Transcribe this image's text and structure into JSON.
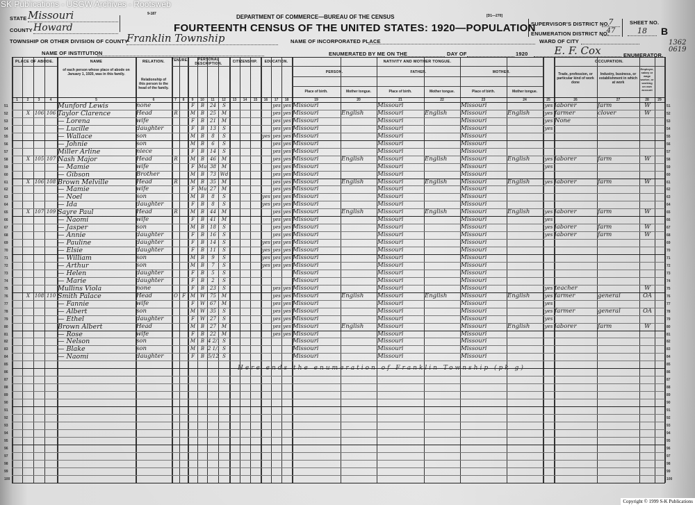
{
  "watermark": "SK Publications - USGW Archives - Rootsweb",
  "copyright": "Copyright © 1999 S-K Publications",
  "form": {
    "form_number": "9-187",
    "department": "DEPARTMENT OF COMMERCE—BUREAU OF THE CENSUS",
    "title": "FOURTEENTH CENSUS OF THE UNITED STATES: 1920—POPULATION",
    "code": "[D1—270]",
    "state_label": "STATE",
    "state_value": "Missouri",
    "county_label": "COUNTY",
    "county_value": "Howard",
    "township_label": "TOWNSHIP OR OTHER DIVISION OF COUNTY",
    "township_value": "Franklin Township",
    "incorporated_label": "NAME OF INCORPORATED PLACE",
    "institution_label": "NAME OF INSTITUTION",
    "ward_label": "WARD OF CITY",
    "enumerated_label": "ENUMERATED BY ME ON THE",
    "day_label": "DAY OF",
    "year": "1920",
    "enumerator_value": "E. F. Cox",
    "enumerator_label": "ENUMERATOR.",
    "supervisor_label": "SUPERVISOR'S DISTRICT NO.",
    "supervisor_value": "7",
    "enumeration_label": "ENUMERATION DISTRICT NO.",
    "enumeration_value": "47",
    "sheet_label": "SHEET NO.",
    "sheet_value": "18",
    "sheet_side": "B",
    "margin_note": "1362 0619"
  },
  "groups": {
    "abode": "PLACE OF ABODE.",
    "name": "NAME",
    "name_desc": "of each person whose place of abode on January 1, 1920, was in this family.",
    "relation": "RELATION.",
    "relation_desc": "Relationship of this person to the head of the family.",
    "tenure": "TENURE.",
    "personal": "PERSONAL DESCRIPTION.",
    "citizenship": "CITIZENSHIP.",
    "education": "EDUCATION.",
    "nativity": "NATIVITY AND MOTHER TONGUE.",
    "person": "PERSON.",
    "father": "FATHER.",
    "mother": "MOTHER.",
    "place_of_birth": "Place of birth.",
    "mother_tongue": "Mother tongue.",
    "occupation": "OCCUPATION.",
    "trade": "Trade, profession, or particular kind of work done",
    "industry": "Industry, business, or establishment in which at work",
    "employer": "Employer, salary or wage worker, or working on own account"
  },
  "column_numbers": [
    "1",
    "2",
    "3",
    "4",
    "5",
    "6",
    "7",
    "8",
    "9",
    "10",
    "11",
    "12",
    "13",
    "14",
    "15",
    "16",
    "17",
    "18",
    "19",
    "20",
    "21",
    "22",
    "23",
    "24",
    "25",
    "26",
    "27",
    "28",
    "29"
  ],
  "rows": [
    {
      "line": "51",
      "name": "Munford Lewis",
      "relation": "none",
      "sex": "F",
      "race": "B",
      "age": "24",
      "marital": "S",
      "read": "yes",
      "write": "yes",
      "birth": "Missouri",
      "f_birth": "Missouri",
      "m_birth": "Missouri",
      "english": "yes",
      "occupation": "laborer",
      "industry": "farm",
      "employer": "W"
    },
    {
      "line": "52",
      "abode": "X",
      "dwelling": "106",
      "family": "106",
      "name": "Taylor Clarence",
      "relation": "Head",
      "home": "R",
      "sex": "M",
      "race": "B",
      "age": "25",
      "marital": "M",
      "read": "yes",
      "write": "yes",
      "birth": "Missouri",
      "tongue": "English",
      "f_birth": "Missouri",
      "f_tongue": "English",
      "m_birth": "Missouri",
      "m_tongue": "English",
      "english": "yes",
      "occupation": "farmer",
      "industry": "clover",
      "employer": "W"
    },
    {
      "line": "53",
      "name": "— Lorena",
      "relation": "wife",
      "sex": "F",
      "race": "B",
      "age": "21",
      "marital": "M",
      "read": "yes",
      "write": "yes",
      "birth": "Missouri",
      "f_birth": "Missouri",
      "m_birth": "Missouri",
      "english": "yes",
      "occupation": "None"
    },
    {
      "line": "54",
      "name": "— Lucille",
      "relation": "daughter",
      "sex": "F",
      "race": "B",
      "age": "13",
      "marital": "S",
      "read": "yes",
      "write": "yes",
      "birth": "Missouri",
      "f_birth": "Missouri",
      "m_birth": "Missouri",
      "english": "yes"
    },
    {
      "line": "55",
      "name": "— Wallace",
      "relation": "son",
      "sex": "M",
      "race": "B",
      "age": "8",
      "marital": "S",
      "school": "yes",
      "read": "yes",
      "write": "yes",
      "birth": "Missouri",
      "f_birth": "Missouri",
      "m_birth": "Missouri"
    },
    {
      "line": "56",
      "name": "— Johnie",
      "relation": "son",
      "sex": "M",
      "race": "B",
      "age": "6",
      "marital": "S",
      "read": "yes",
      "write": "yes",
      "birth": "Missouri",
      "f_birth": "Missouri",
      "m_birth": "Missouri"
    },
    {
      "line": "57",
      "name": "Miller Arline",
      "relation": "niece",
      "sex": "F",
      "race": "B",
      "age": "14",
      "marital": "S",
      "read": "yes",
      "write": "yes",
      "birth": "Missouri",
      "f_birth": "Missouri",
      "m_birth": "Missouri"
    },
    {
      "line": "58",
      "abode": "X",
      "dwelling": "105",
      "family": "107",
      "name": "Nash Major",
      "relation": "Head",
      "home": "R",
      "sex": "M",
      "race": "B",
      "age": "46",
      "marital": "M",
      "read": "yes",
      "write": "yes",
      "birth": "Missouri",
      "tongue": "English",
      "f_birth": "Missouri",
      "f_tongue": "English",
      "m_birth": "Missouri",
      "m_tongue": "English",
      "english": "yes",
      "occupation": "laborer",
      "industry": "farm",
      "employer": "W"
    },
    {
      "line": "59",
      "name": "— Mamie",
      "relation": "wife",
      "sex": "F",
      "race": "Mu",
      "age": "38",
      "marital": "M",
      "read": "yes",
      "write": "yes",
      "birth": "Missouri",
      "f_birth": "Missouri",
      "m_birth": "Missouri",
      "english": "yes"
    },
    {
      "line": "60",
      "name": "— Gibson",
      "relation": "Brother",
      "sex": "M",
      "race": "B",
      "age": "73",
      "marital": "Wd",
      "read": "yes",
      "write": "yes",
      "birth": "Missouri",
      "f_birth": "Missouri",
      "m_birth": "Missouri"
    },
    {
      "line": "61",
      "abode": "X",
      "dwelling": "106",
      "family": "108",
      "name": "Brown Melville",
      "relation": "Head",
      "home": "R",
      "sex": "M",
      "race": "B",
      "age": "35",
      "marital": "M",
      "read": "yes",
      "write": "yes",
      "birth": "Missouri",
      "tongue": "English",
      "f_birth": "Missouri",
      "f_tongue": "English",
      "m_birth": "Missouri",
      "m_tongue": "English",
      "english": "yes",
      "occupation": "laborer",
      "industry": "farm",
      "employer": "W"
    },
    {
      "line": "62",
      "name": "— Mamie",
      "relation": "wife",
      "sex": "F",
      "race": "Mu",
      "age": "27",
      "marital": "M",
      "read": "yes",
      "write": "yes",
      "birth": "Missouri",
      "f_birth": "Missouri",
      "m_birth": "Missouri"
    },
    {
      "line": "63",
      "name": "— Noel",
      "relation": "son",
      "sex": "M",
      "race": "B",
      "age": "8",
      "marital": "S",
      "school": "yes",
      "read": "yes",
      "write": "yes",
      "birth": "Missouri",
      "f_birth": "Missouri",
      "m_birth": "Missouri"
    },
    {
      "line": "64",
      "name": "— Ida",
      "relation": "daughter",
      "sex": "F",
      "race": "B",
      "age": "8",
      "marital": "S",
      "school": "yes",
      "read": "yes",
      "write": "yes",
      "birth": "Missouri",
      "f_birth": "Missouri",
      "m_birth": "Missouri"
    },
    {
      "line": "65",
      "abode": "X",
      "dwelling": "107",
      "family": "109",
      "name": "Sayre Paul",
      "relation": "Head",
      "home": "R",
      "sex": "M",
      "race": "B",
      "age": "44",
      "marital": "M",
      "read": "yes",
      "write": "yes",
      "birth": "Missouri",
      "tongue": "English",
      "f_birth": "Missouri",
      "f_tongue": "English",
      "m_birth": "Missouri",
      "m_tongue": "English",
      "english": "yes",
      "occupation": "laborer",
      "industry": "farm",
      "employer": "W"
    },
    {
      "line": "66",
      "name": "— Naomi",
      "relation": "wife",
      "sex": "F",
      "race": "B",
      "age": "41",
      "marital": "M",
      "read": "yes",
      "write": "yes",
      "birth": "Missouri",
      "f_birth": "Missouri",
      "m_birth": "Missouri",
      "english": "yes"
    },
    {
      "line": "67",
      "name": "— Jasper",
      "relation": "son",
      "sex": "M",
      "race": "B",
      "age": "18",
      "marital": "S",
      "read": "yes",
      "write": "yes",
      "birth": "Missouri",
      "f_birth": "Missouri",
      "m_birth": "Missouri",
      "english": "yes",
      "occupation": "laborer",
      "industry": "farm",
      "employer": "W"
    },
    {
      "line": "68",
      "name": "— Annie",
      "relation": "daughter",
      "sex": "F",
      "race": "B",
      "age": "16",
      "marital": "S",
      "read": "yes",
      "write": "yes",
      "birth": "Missouri",
      "f_birth": "Missouri",
      "m_birth": "Missouri",
      "english": "yes",
      "occupation": "laborer",
      "industry": "farm",
      "employer": "W"
    },
    {
      "line": "69",
      "name": "— Pauline",
      "relation": "daughter",
      "sex": "F",
      "race": "B",
      "age": "14",
      "marital": "S",
      "school": "yes",
      "read": "yes",
      "write": "yes",
      "birth": "Missouri",
      "f_birth": "Missouri",
      "m_birth": "Missouri"
    },
    {
      "line": "70",
      "name": "— Elsie",
      "relation": "daughter",
      "sex": "F",
      "race": "B",
      "age": "11",
      "marital": "S",
      "school": "yes",
      "read": "yes",
      "write": "yes",
      "birth": "Missouri",
      "f_birth": "Missouri",
      "m_birth": "Missouri"
    },
    {
      "line": "71",
      "name": "— William",
      "relation": "son",
      "sex": "M",
      "race": "B",
      "age": "9",
      "marital": "S",
      "school": "yes",
      "read": "yes",
      "write": "yes",
      "birth": "Missouri",
      "f_birth": "Missouri",
      "m_birth": "Missouri"
    },
    {
      "line": "72",
      "name": "— Arthur",
      "relation": "son",
      "sex": "M",
      "race": "B",
      "age": "7",
      "marital": "S",
      "school": "yes",
      "read": "yes",
      "write": "yes",
      "birth": "Missouri",
      "f_birth": "Missouri",
      "m_birth": "Missouri"
    },
    {
      "line": "73",
      "name": "— Helen",
      "relation": "daughter",
      "sex": "F",
      "race": "B",
      "age": "5",
      "marital": "S",
      "birth": "Missouri",
      "f_birth": "Missouri",
      "m_birth": "Missouri"
    },
    {
      "line": "74",
      "name": "— Marie",
      "relation": "daughter",
      "sex": "F",
      "race": "B",
      "age": "2",
      "marital": "S",
      "birth": "Missouri",
      "f_birth": "Missouri",
      "m_birth": "Missouri"
    },
    {
      "line": "75",
      "name": "Mullins Viola",
      "relation": "none",
      "sex": "F",
      "race": "B",
      "age": "23",
      "marital": "S",
      "read": "yes",
      "write": "yes",
      "birth": "Missouri",
      "f_birth": "Missouri",
      "m_birth": "Missouri",
      "english": "yes",
      "occupation": "teacher",
      "employer": "W"
    },
    {
      "line": "76",
      "abode": "X",
      "dwelling": "108",
      "family": "110",
      "name": "Smith Palace",
      "relation": "Head",
      "home": "O",
      "mortgage": "F",
      "sex": "M",
      "race": "W",
      "age": "75",
      "marital": "M",
      "read": "yes",
      "write": "yes",
      "birth": "Missouri",
      "tongue": "English",
      "f_birth": "Missouri",
      "f_tongue": "English",
      "m_birth": "Missouri",
      "m_tongue": "English",
      "english": "yes",
      "occupation": "farmer",
      "industry": "general",
      "employer": "OA"
    },
    {
      "line": "77",
      "name": "— Fannie",
      "relation": "wife",
      "sex": "F",
      "race": "W",
      "age": "67",
      "marital": "M",
      "read": "yes",
      "write": "yes",
      "birth": "Missouri",
      "f_birth": "Missouri",
      "m_birth": "Missouri",
      "english": "yes"
    },
    {
      "line": "78",
      "name": "— Albert",
      "relation": "son",
      "sex": "M",
      "race": "W",
      "age": "35",
      "marital": "S",
      "read": "yes",
      "write": "yes",
      "birth": "Missouri",
      "f_birth": "Missouri",
      "m_birth": "Missouri",
      "english": "yes",
      "occupation": "farmer",
      "industry": "general",
      "employer": "OA"
    },
    {
      "line": "79",
      "name": "— Ethel",
      "relation": "daughter",
      "sex": "F",
      "race": "W",
      "age": "27",
      "marital": "S",
      "read": "yes",
      "write": "yes",
      "birth": "Missouri",
      "f_birth": "Missouri",
      "m_birth": "Missouri",
      "english": "yes"
    },
    {
      "line": "80",
      "name": "Brown Albert",
      "relation": "Head",
      "sex": "M",
      "race": "B",
      "age": "27",
      "marital": "M",
      "read": "yes",
      "write": "yes",
      "birth": "Missouri",
      "tongue": "English",
      "f_birth": "Missouri",
      "m_birth": "Missouri",
      "m_tongue": "English",
      "english": "yes",
      "occupation": "laborer",
      "industry": "farm",
      "employer": "W"
    },
    {
      "line": "81",
      "name": "— Rose",
      "relation": "wife",
      "sex": "F",
      "race": "B",
      "age": "22",
      "marital": "M",
      "read": "yes",
      "write": "yes",
      "birth": "Missouri",
      "f_birth": "Missouri",
      "m_birth": "Missouri"
    },
    {
      "line": "82",
      "name": "— Nelson",
      "relation": "son",
      "sex": "M",
      "race": "B",
      "age": "4 2/12",
      "marital": "S",
      "birth": "Missouri",
      "f_birth": "Missouri",
      "m_birth": "Missouri"
    },
    {
      "line": "83",
      "name": "— Blake",
      "relation": "son",
      "sex": "M",
      "race": "B",
      "age": "2 1/12",
      "marital": "S",
      "birth": "Missouri",
      "f_birth": "Missouri",
      "m_birth": "Missouri"
    },
    {
      "line": "84",
      "name": "— Naomi",
      "relation": "daughter",
      "sex": "F",
      "race": "B",
      "age": "5/12",
      "marital": "S",
      "birth": "Missouri",
      "f_birth": "Missouri",
      "m_birth": "Missouri"
    }
  ],
  "total_lines": [
    "51",
    "52",
    "53",
    "54",
    "55",
    "56",
    "57",
    "58",
    "59",
    "60",
    "61",
    "62",
    "63",
    "64",
    "65",
    "66",
    "67",
    "68",
    "69",
    "70",
    "71",
    "72",
    "73",
    "74",
    "75",
    "76",
    "77",
    "78",
    "79",
    "80",
    "81",
    "82",
    "83",
    "84",
    "85",
    "86",
    "87",
    "88",
    "89",
    "90",
    "91",
    "92",
    "93",
    "94",
    "95",
    "96",
    "97",
    "98",
    "99",
    "100"
  ],
  "end_note": "Here ends the enumeration of Franklin Township (pk g)"
}
